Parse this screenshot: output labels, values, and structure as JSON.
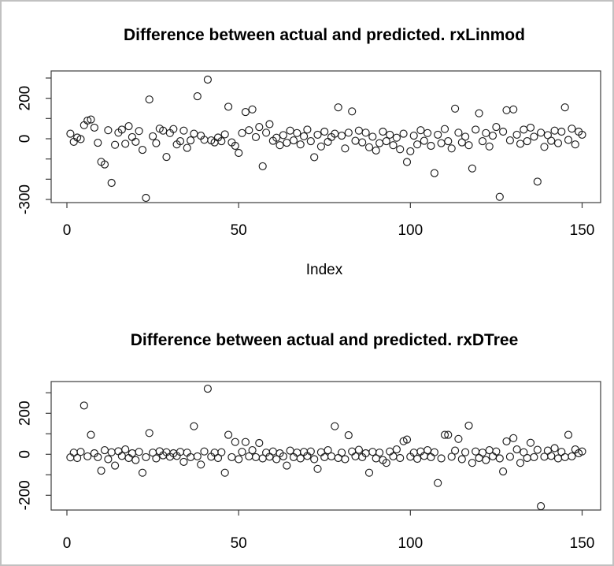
{
  "figure": {
    "background": "#ffffff",
    "border_color": "#c1c1c1",
    "axis_color": "#3d3d3d",
    "point_color": "#1c1c1c",
    "text_color": "#000000"
  },
  "chart_data": [
    {
      "type": "scatter",
      "title": "Difference between actual and predicted. rxLinmod",
      "xlabel": "Index",
      "ylabel": "",
      "marker": "open-circle",
      "x_is_index": true,
      "xlim": [
        -5,
        156
      ],
      "ylim": [
        -320,
        335
      ],
      "grid": false,
      "legend": null,
      "xticks": [
        {
          "v": 0,
          "label": "0"
        },
        {
          "v": 50,
          "label": "50"
        },
        {
          "v": 100,
          "label": "100"
        },
        {
          "v": 150,
          "label": "150"
        }
      ],
      "yticks": [
        {
          "v": 300,
          "label": ""
        },
        {
          "v": 200,
          "label": "200"
        },
        {
          "v": 100,
          "label": ""
        },
        {
          "v": 0,
          "label": "0"
        },
        {
          "v": -100,
          "label": ""
        },
        {
          "v": -200,
          "label": ""
        },
        {
          "v": -300,
          "label": "-300"
        }
      ],
      "values": [
        25,
        -15,
        6,
        -2,
        67,
        90,
        95,
        55,
        -20,
        -114,
        -127,
        42,
        -218,
        -30,
        30,
        45,
        -25,
        62,
        8,
        -15,
        38,
        -55,
        -292,
        194,
        12,
        -22,
        50,
        40,
        -90,
        28,
        48,
        -28,
        -12,
        40,
        -45,
        -8,
        25,
        210,
        15,
        -5,
        292,
        -8,
        -18,
        6,
        -12,
        22,
        158,
        -18,
        -35,
        -70,
        28,
        132,
        42,
        145,
        8,
        58,
        -136,
        30,
        72,
        -10,
        5,
        -32,
        18,
        -20,
        40,
        -8,
        28,
        -28,
        12,
        45,
        -12,
        -91,
        20,
        -38,
        35,
        -15,
        8,
        25,
        155,
        15,
        -48,
        30,
        135,
        -10,
        40,
        -18,
        30,
        -42,
        10,
        -58,
        -22,
        35,
        -12,
        20,
        -32,
        5,
        -52,
        25,
        -115,
        -62,
        15,
        -28,
        42,
        -10,
        28,
        -35,
        -170,
        20,
        -22,
        48,
        -12,
        -48,
        149,
        30,
        -18,
        10,
        -32,
        -147,
        45,
        126,
        -12,
        28,
        -38,
        15,
        58,
        -287,
        35,
        141,
        -8,
        145,
        20,
        -25,
        45,
        -12,
        55,
        10,
        -212,
        30,
        -40,
        18,
        -10,
        40,
        -22,
        35,
        155,
        -6,
        50,
        -28,
        35,
        20
      ]
    },
    {
      "type": "scatter",
      "title": "Difference between actual and predicted. rxDTree",
      "xlabel": "",
      "ylabel": "",
      "marker": "open-circle",
      "x_is_index": true,
      "xlim": [
        -5,
        156
      ],
      "ylim": [
        -275,
        355
      ],
      "grid": false,
      "legend": null,
      "xticks": [
        {
          "v": 0,
          "label": "0"
        },
        {
          "v": 50,
          "label": "50"
        },
        {
          "v": 100,
          "label": "100"
        },
        {
          "v": 150,
          "label": "150"
        }
      ],
      "yticks": [
        {
          "v": 300,
          "label": ""
        },
        {
          "v": 200,
          "label": "200"
        },
        {
          "v": 100,
          "label": ""
        },
        {
          "v": 0,
          "label": "0"
        },
        {
          "v": -100,
          "label": ""
        },
        {
          "v": -200,
          "label": "-200"
        }
      ],
      "values": [
        -15,
        8,
        -18,
        12,
        238,
        -10,
        95,
        5,
        -14,
        -80,
        20,
        -24,
        10,
        -55,
        15,
        -8,
        24,
        -18,
        5,
        -28,
        12,
        -90,
        -14,
        104,
        8,
        -20,
        15,
        -5,
        10,
        -12,
        5,
        -8,
        12,
        -37,
        8,
        -14,
        137,
        -10,
        -50,
        14,
        320,
        -12,
        8,
        -18,
        10,
        -90,
        95,
        -14,
        60,
        -24,
        12,
        60,
        -10,
        20,
        -14,
        55,
        -20,
        8,
        -12,
        14,
        -24,
        5,
        -10,
        -55,
        18,
        -14,
        8,
        -20,
        12,
        -8,
        14,
        -24,
        -71,
        10,
        -14,
        20,
        -10,
        137,
        -18,
        8,
        -24,
        93,
        14,
        -10,
        22,
        -14,
        5,
        -90,
        12,
        -20,
        8,
        -28,
        -42,
        14,
        -10,
        24,
        -18,
        64,
        72,
        -12,
        8,
        -22,
        14,
        -8,
        20,
        -14,
        10,
        -140,
        -20,
        95,
        95,
        -12,
        18,
        75,
        -24,
        10,
        140,
        -42,
        14,
        -18,
        8,
        -28,
        20,
        -10,
        14,
        -20,
        -84,
        63,
        -12,
        79,
        24,
        -42,
        10,
        -18,
        56,
        -14,
        22,
        -253,
        -12,
        18,
        -8,
        30,
        -20,
        12,
        -14,
        95,
        -10,
        24,
        5,
        14
      ]
    }
  ]
}
